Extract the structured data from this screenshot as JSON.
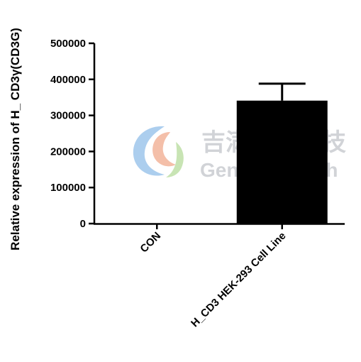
{
  "chart_data": {
    "type": "bar",
    "categories": [
      "CON",
      "H_CD3 HEK-293 Cell Line"
    ],
    "values": [
      0,
      341000
    ],
    "error_upper": [
      0,
      388000
    ],
    "ylabel": "Relative expression of H_ CD3γ(CD3G)",
    "xlabel": "",
    "ylim": [
      0,
      500000
    ],
    "yticks": [
      0,
      100000,
      200000,
      300000,
      400000,
      500000
    ],
    "ytick_labels": [
      "0",
      "100000",
      "200000",
      "300000",
      "400000",
      "500000"
    ],
    "grid": false,
    "bar_color": "#000000"
  },
  "watermark": {
    "cn_text": "吉满生物科技",
    "en_text": "Genomeditech",
    "logo": "genomeditech-logo"
  }
}
